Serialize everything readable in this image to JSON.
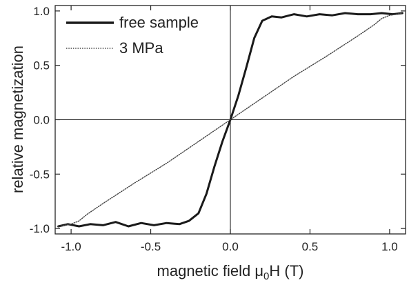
{
  "chart_data": {
    "type": "line",
    "xlabel": "magnetic field μ0H (T)",
    "ylabel": "relative magnetization",
    "xlim": [
      -1.1,
      1.1
    ],
    "ylim": [
      -1.05,
      1.05
    ],
    "x_ticks": [
      -1.0,
      -0.5,
      0.0,
      0.5,
      1.0
    ],
    "x_tick_labels": [
      "-1.0",
      "-0.5",
      "0.0",
      "0.5",
      "1.0"
    ],
    "y_ticks": [
      -1.0,
      -0.5,
      0.0,
      0.5,
      1.0
    ],
    "y_tick_labels": [
      "-1.0",
      "-0.5",
      "0.0",
      "0.5",
      "1.0"
    ],
    "zero_lines": true,
    "legend_position": "top-left",
    "series": [
      {
        "name": "free sample",
        "style": "solid-thick",
        "color": "#1a1a1a",
        "points": [
          [
            -1.08,
            -0.98
          ],
          [
            -1.02,
            -0.96
          ],
          [
            -0.95,
            -0.98
          ],
          [
            -0.88,
            -0.96
          ],
          [
            -0.8,
            -0.97
          ],
          [
            -0.72,
            -0.94
          ],
          [
            -0.64,
            -0.98
          ],
          [
            -0.56,
            -0.95
          ],
          [
            -0.48,
            -0.97
          ],
          [
            -0.4,
            -0.95
          ],
          [
            -0.32,
            -0.96
          ],
          [
            -0.26,
            -0.93
          ],
          [
            -0.2,
            -0.86
          ],
          [
            -0.15,
            -0.68
          ],
          [
            -0.1,
            -0.43
          ],
          [
            -0.05,
            -0.2
          ],
          [
            0.0,
            0.0
          ],
          [
            0.05,
            0.22
          ],
          [
            0.1,
            0.48
          ],
          [
            0.15,
            0.75
          ],
          [
            0.2,
            0.91
          ],
          [
            0.26,
            0.95
          ],
          [
            0.32,
            0.94
          ],
          [
            0.4,
            0.97
          ],
          [
            0.48,
            0.95
          ],
          [
            0.56,
            0.97
          ],
          [
            0.64,
            0.96
          ],
          [
            0.72,
            0.98
          ],
          [
            0.8,
            0.97
          ],
          [
            0.88,
            0.97
          ],
          [
            0.95,
            0.98
          ],
          [
            1.02,
            0.97
          ],
          [
            1.08,
            0.98
          ]
        ]
      },
      {
        "name": "3 MPa",
        "style": "dotted",
        "color": "#444444",
        "points": [
          [
            -1.08,
            -0.98
          ],
          [
            -1.0,
            -0.96
          ],
          [
            -0.95,
            -0.93
          ],
          [
            -0.9,
            -0.87
          ],
          [
            -0.8,
            -0.77
          ],
          [
            -0.6,
            -0.58
          ],
          [
            -0.4,
            -0.4
          ],
          [
            -0.2,
            -0.2
          ],
          [
            0.0,
            0.0
          ],
          [
            0.2,
            0.2
          ],
          [
            0.4,
            0.4
          ],
          [
            0.6,
            0.58
          ],
          [
            0.8,
            0.77
          ],
          [
            0.9,
            0.87
          ],
          [
            0.95,
            0.93
          ],
          [
            1.0,
            0.96
          ],
          [
            1.08,
            0.98
          ]
        ]
      }
    ]
  }
}
